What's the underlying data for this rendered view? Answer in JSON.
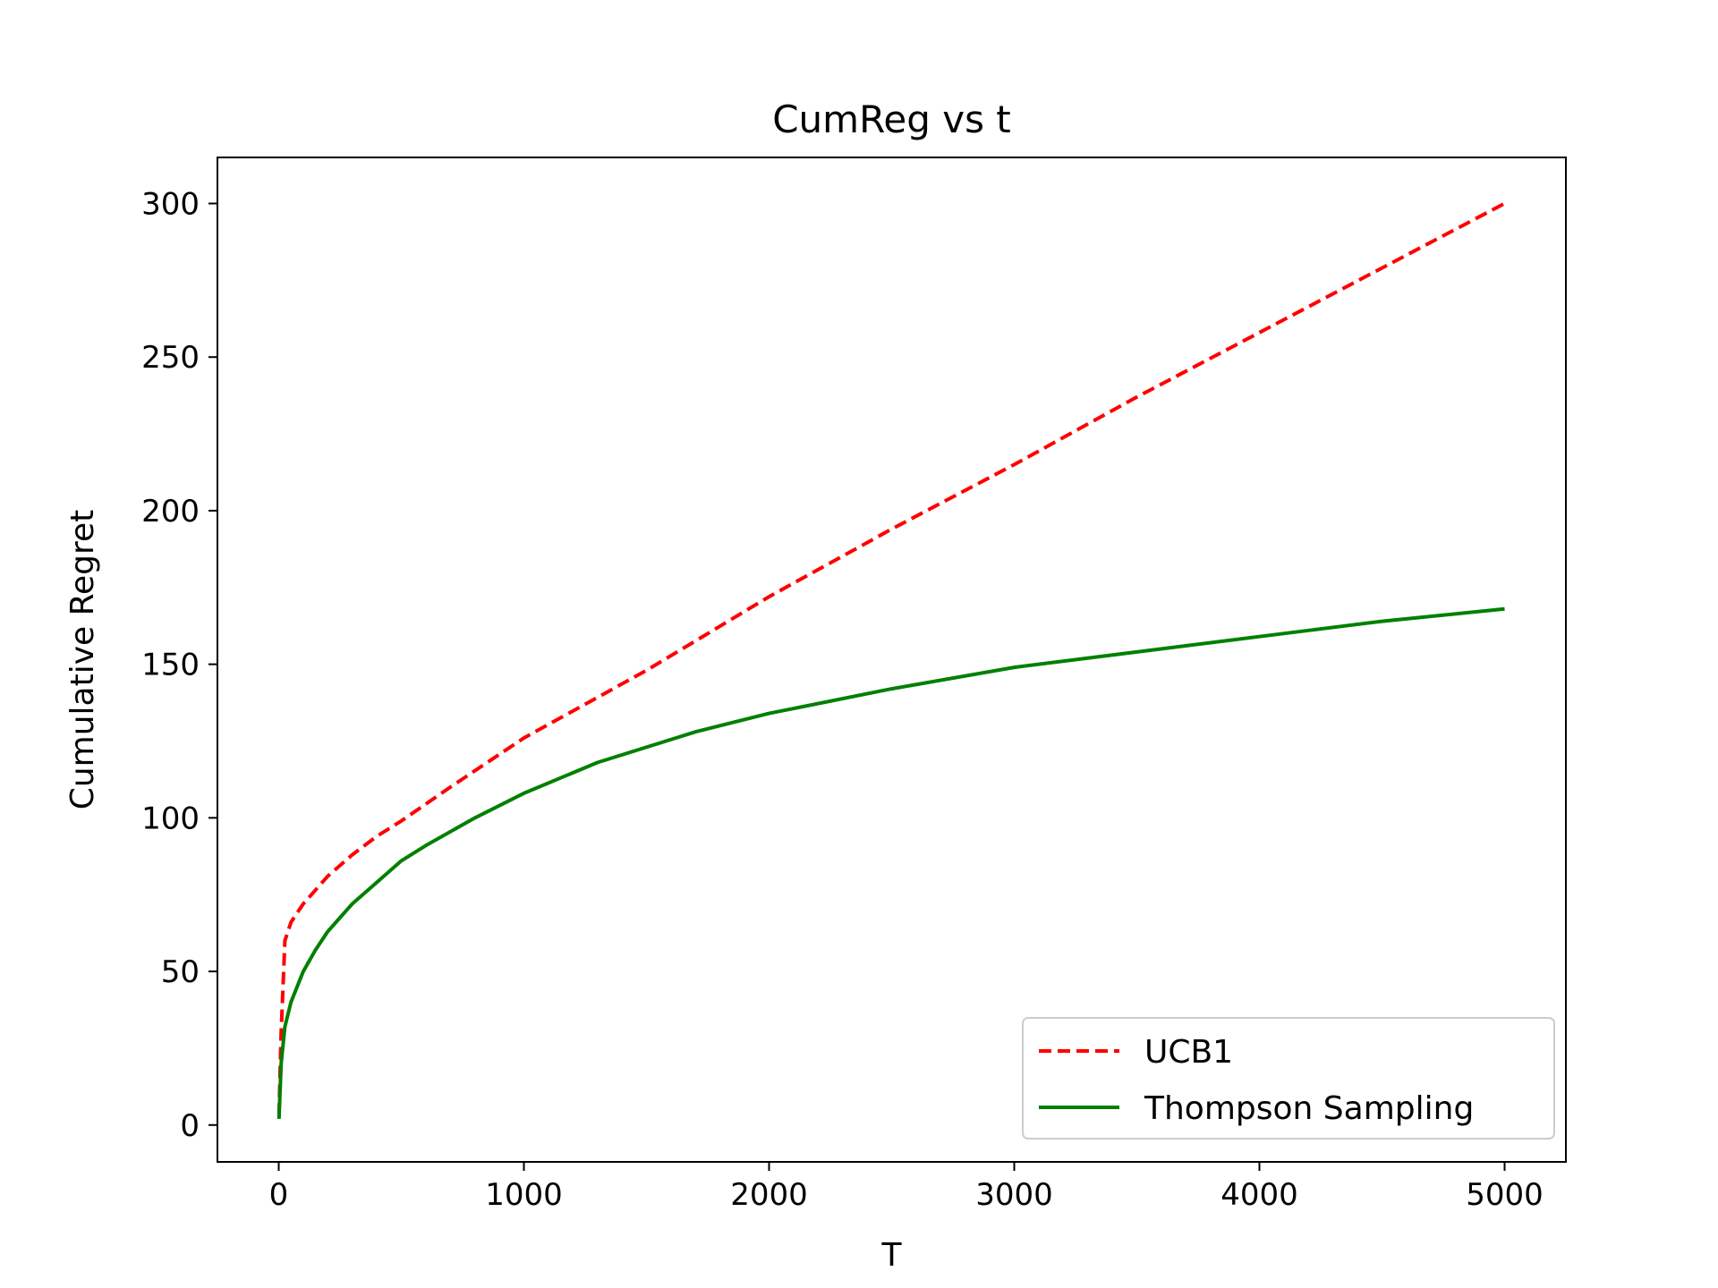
{
  "chart_data": {
    "type": "line",
    "title": "CumReg vs t",
    "xlabel": "T",
    "ylabel": "Cumulative Regret",
    "xlim": [
      -250,
      5250
    ],
    "ylim": [
      -12,
      315
    ],
    "xticks": [
      0,
      1000,
      2000,
      3000,
      4000,
      5000
    ],
    "yticks": [
      0,
      50,
      100,
      150,
      200,
      250,
      300
    ],
    "grid": false,
    "legend_position": "lower-right",
    "series": [
      {
        "name": "UCB1",
        "color": "#ff0000",
        "style": "dashed",
        "x": [
          1,
          10,
          25,
          50,
          100,
          200,
          300,
          400,
          500,
          700,
          1000,
          1500,
          2000,
          2500,
          3000,
          3500,
          4000,
          4500,
          5000
        ],
        "y": [
          3,
          30,
          60,
          66,
          72,
          81,
          88,
          94,
          99,
          110,
          126,
          148,
          172,
          194,
          215,
          237,
          258,
          279,
          300
        ]
      },
      {
        "name": "Thompson Sampling",
        "color": "#008000",
        "style": "solid",
        "x": [
          1,
          10,
          25,
          50,
          100,
          150,
          200,
          300,
          400,
          500,
          600,
          800,
          1000,
          1300,
          1700,
          2000,
          2500,
          3000,
          3500,
          4000,
          4500,
          5000
        ],
        "y": [
          2,
          20,
          32,
          40,
          50,
          57,
          63,
          72,
          79,
          86,
          91,
          100,
          108,
          118,
          128,
          134,
          142,
          149,
          154,
          159,
          164,
          168
        ]
      }
    ]
  }
}
